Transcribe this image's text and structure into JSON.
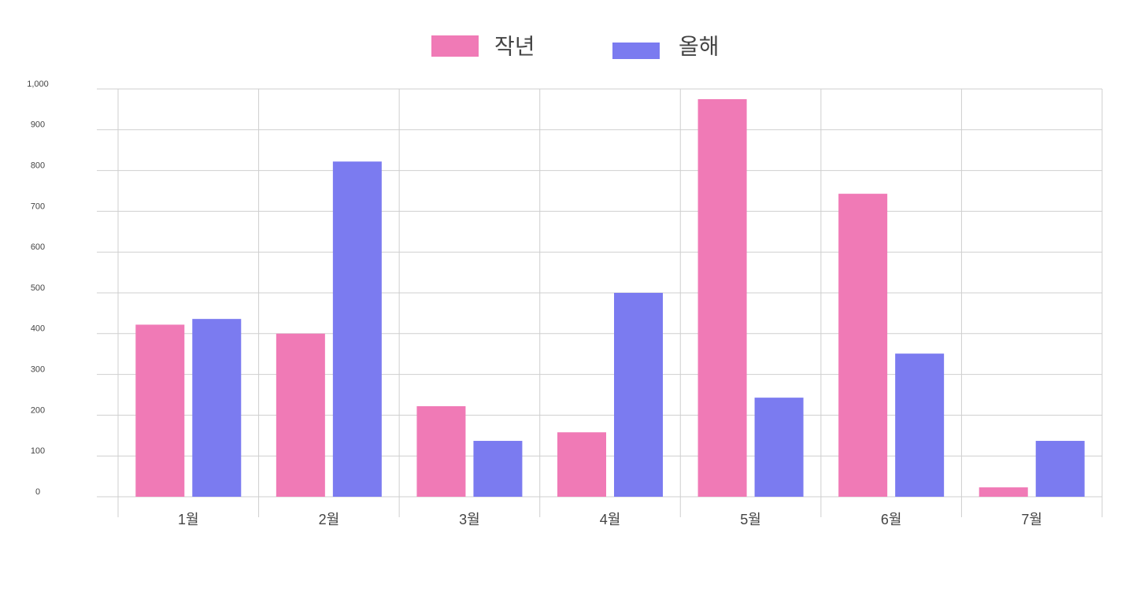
{
  "chart_data": {
    "type": "bar",
    "categories": [
      "1월",
      "2월",
      "3월",
      "4월",
      "5월",
      "6월",
      "7월"
    ],
    "series": [
      {
        "name": "작년",
        "color": "#f07ab6",
        "values": [
          422,
          400,
          222,
          158,
          975,
          743,
          23
        ]
      },
      {
        "name": "올해",
        "color": "#7b7bf0",
        "values": [
          436,
          822,
          137,
          500,
          243,
          351,
          137
        ]
      }
    ],
    "ylim": [
      0,
      1000
    ],
    "yticks": [
      0,
      100,
      200,
      300,
      400,
      500,
      600,
      700,
      800,
      900,
      {
        "value": 1000,
        "label": "1,000"
      }
    ],
    "grid": true
  }
}
